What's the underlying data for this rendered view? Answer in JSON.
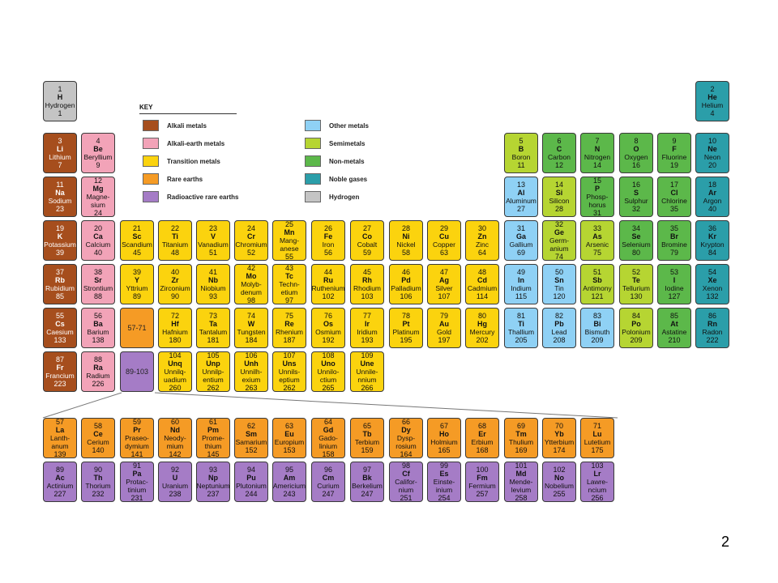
{
  "colors": {
    "alkali": "#a64e1d",
    "alkaline_earth": "#f2a3b8",
    "transition": "#fbd30e",
    "rare_earth": "#f59b25",
    "radioactive_rare_earth": "#a57cc6",
    "other_metal": "#8fd1f5",
    "semimetal": "#b6d532",
    "non_metal": "#5cb84a",
    "noble_gas": "#2b9ea9",
    "hydrogen": "#c4c4c4"
  },
  "key": {
    "title": "KEY",
    "items": [
      {
        "label": "Alkali metals",
        "color_key": "alkali"
      },
      {
        "label": "Alkali-earth metals",
        "color_key": "alkaline_earth"
      },
      {
        "label": "Transition metals",
        "color_key": "transition"
      },
      {
        "label": "Rare earths",
        "color_key": "rare_earth"
      },
      {
        "label": "Radioactive rare earths",
        "color_key": "radioactive_rare_earth"
      },
      {
        "label": "Other metals",
        "color_key": "other_metal"
      },
      {
        "label": "Semimetals",
        "color_key": "semimetal"
      },
      {
        "label": "Non-metals",
        "color_key": "non_metal"
      },
      {
        "label": "Noble gases",
        "color_key": "noble_gas"
      },
      {
        "label": "Hydrogen",
        "color_key": "hydrogen"
      }
    ]
  },
  "placeholders": [
    {
      "label": "57-71",
      "row": 5,
      "col": 3,
      "cat": "rare_earth"
    },
    {
      "label": "89-103",
      "row": 6,
      "col": 3,
      "cat": "radioactive_rare_earth"
    }
  ],
  "elements": [
    {
      "n": "1",
      "s": "H",
      "name": "Hydrogen",
      "m": "1",
      "row": 0,
      "col": 0,
      "cat": "hydrogen"
    },
    {
      "n": "2",
      "s": "He",
      "name": "Helium",
      "m": "4",
      "row": 0,
      "col": 17,
      "cat": "noble_gas"
    },
    {
      "n": "3",
      "s": "Li",
      "name": "Lithium",
      "m": "7",
      "row": 1,
      "col": 0,
      "cat": "alkali"
    },
    {
      "n": "4",
      "s": "Be",
      "name": "Beryllium",
      "m": "9",
      "row": 1,
      "col": 1,
      "cat": "alkaline_earth"
    },
    {
      "n": "5",
      "s": "B",
      "name": "Boron",
      "m": "11",
      "row": 1,
      "col": 12,
      "cat": "semimetal"
    },
    {
      "n": "6",
      "s": "C",
      "name": "Carbon",
      "m": "12",
      "row": 1,
      "col": 13,
      "cat": "non_metal"
    },
    {
      "n": "7",
      "s": "N",
      "name": "Nitrogen",
      "m": "14",
      "row": 1,
      "col": 14,
      "cat": "non_metal"
    },
    {
      "n": "8",
      "s": "O",
      "name": "Oxygen",
      "m": "16",
      "row": 1,
      "col": 15,
      "cat": "non_metal"
    },
    {
      "n": "9",
      "s": "F",
      "name": "Fluorine",
      "m": "19",
      "row": 1,
      "col": 16,
      "cat": "non_metal"
    },
    {
      "n": "10",
      "s": "Ne",
      "name": "Neon",
      "m": "20",
      "row": 1,
      "col": 17,
      "cat": "noble_gas"
    },
    {
      "n": "11",
      "s": "Na",
      "name": "Sodium",
      "m": "23",
      "row": 2,
      "col": 0,
      "cat": "alkali"
    },
    {
      "n": "12",
      "s": "Mg",
      "name": "Magne-\nsium",
      "m": "24",
      "row": 2,
      "col": 1,
      "cat": "alkaline_earth"
    },
    {
      "n": "13",
      "s": "Al",
      "name": "Aluminum",
      "m": "27",
      "row": 2,
      "col": 12,
      "cat": "other_metal"
    },
    {
      "n": "14",
      "s": "Si",
      "name": "Silicon",
      "m": "28",
      "row": 2,
      "col": 13,
      "cat": "semimetal"
    },
    {
      "n": "15",
      "s": "P",
      "name": "Phosp-\nhorus",
      "m": "31",
      "row": 2,
      "col": 14,
      "cat": "non_metal"
    },
    {
      "n": "16",
      "s": "S",
      "name": "Sulphur",
      "m": "32",
      "row": 2,
      "col": 15,
      "cat": "non_metal"
    },
    {
      "n": "17",
      "s": "Cl",
      "name": "Chlorine",
      "m": "35",
      "row": 2,
      "col": 16,
      "cat": "non_metal"
    },
    {
      "n": "18",
      "s": "Ar",
      "name": "Argon",
      "m": "40",
      "row": 2,
      "col": 17,
      "cat": "noble_gas"
    },
    {
      "n": "19",
      "s": "K",
      "name": "Potassium",
      "m": "39",
      "row": 3,
      "col": 0,
      "cat": "alkali"
    },
    {
      "n": "20",
      "s": "Ca",
      "name": "Calcium",
      "m": "40",
      "row": 3,
      "col": 1,
      "cat": "alkaline_earth"
    },
    {
      "n": "21",
      "s": "Sc",
      "name": "Scandium",
      "m": "45",
      "row": 3,
      "col": 2,
      "cat": "transition"
    },
    {
      "n": "22",
      "s": "Ti",
      "name": "Titanium",
      "m": "48",
      "row": 3,
      "col": 3,
      "cat": "transition"
    },
    {
      "n": "23",
      "s": "V",
      "name": "Vanadium",
      "m": "51",
      "row": 3,
      "col": 4,
      "cat": "transition"
    },
    {
      "n": "24",
      "s": "Cr",
      "name": "Chromium",
      "m": "52",
      "row": 3,
      "col": 5,
      "cat": "transition"
    },
    {
      "n": "25",
      "s": "Mn",
      "name": "Mang-\nanese",
      "m": "55",
      "row": 3,
      "col": 6,
      "cat": "transition"
    },
    {
      "n": "26",
      "s": "Fe",
      "name": "Iron",
      "m": "56",
      "row": 3,
      "col": 7,
      "cat": "transition"
    },
    {
      "n": "27",
      "s": "Co",
      "name": "Cobalt",
      "m": "59",
      "row": 3,
      "col": 8,
      "cat": "transition"
    },
    {
      "n": "28",
      "s": "Ni",
      "name": "Nickel",
      "m": "58",
      "row": 3,
      "col": 9,
      "cat": "transition"
    },
    {
      "n": "29",
      "s": "Cu",
      "name": "Copper",
      "m": "63",
      "row": 3,
      "col": 10,
      "cat": "transition"
    },
    {
      "n": "30",
      "s": "Zn",
      "name": "Zinc",
      "m": "64",
      "row": 3,
      "col": 11,
      "cat": "transition"
    },
    {
      "n": "31",
      "s": "Ga",
      "name": "Gallium",
      "m": "69",
      "row": 3,
      "col": 12,
      "cat": "other_metal"
    },
    {
      "n": "32",
      "s": "Ge",
      "name": "Germ-\nanium",
      "m": "74",
      "row": 3,
      "col": 13,
      "cat": "semimetal"
    },
    {
      "n": "33",
      "s": "As",
      "name": "Arsenic",
      "m": "75",
      "row": 3,
      "col": 14,
      "cat": "semimetal"
    },
    {
      "n": "34",
      "s": "Se",
      "name": "Selenium",
      "m": "80",
      "row": 3,
      "col": 15,
      "cat": "non_metal"
    },
    {
      "n": "35",
      "s": "Br",
      "name": "Bromine",
      "m": "79",
      "row": 3,
      "col": 16,
      "cat": "non_metal"
    },
    {
      "n": "36",
      "s": "Kr",
      "name": "Krypton",
      "m": "84",
      "row": 3,
      "col": 17,
      "cat": "noble_gas"
    },
    {
      "n": "37",
      "s": "Rb",
      "name": "Rubidium",
      "m": "85",
      "row": 4,
      "col": 0,
      "cat": "alkali"
    },
    {
      "n": "38",
      "s": "Sr",
      "name": "Strontium",
      "m": "88",
      "row": 4,
      "col": 1,
      "cat": "alkaline_earth"
    },
    {
      "n": "39",
      "s": "Y",
      "name": "Yttrium",
      "m": "89",
      "row": 4,
      "col": 2,
      "cat": "transition"
    },
    {
      "n": "40",
      "s": "Zr",
      "name": "Zirconium",
      "m": "90",
      "row": 4,
      "col": 3,
      "cat": "transition"
    },
    {
      "n": "41",
      "s": "Nb",
      "name": "Niobium",
      "m": "93",
      "row": 4,
      "col": 4,
      "cat": "transition"
    },
    {
      "n": "42",
      "s": "Mo",
      "name": "Molyb-\ndenum",
      "m": "98",
      "row": 4,
      "col": 5,
      "cat": "transition"
    },
    {
      "n": "43",
      "s": "Tc",
      "name": "Techn-\netium",
      "m": "97",
      "row": 4,
      "col": 6,
      "cat": "transition"
    },
    {
      "n": "44",
      "s": "Ru",
      "name": "Ruthenium",
      "m": "102",
      "row": 4,
      "col": 7,
      "cat": "transition"
    },
    {
      "n": "45",
      "s": "Rh",
      "name": "Rhodium",
      "m": "103",
      "row": 4,
      "col": 8,
      "cat": "transition"
    },
    {
      "n": "46",
      "s": "Pd",
      "name": "Palladium",
      "m": "106",
      "row": 4,
      "col": 9,
      "cat": "transition"
    },
    {
      "n": "47",
      "s": "Ag",
      "name": "Silver",
      "m": "107",
      "row": 4,
      "col": 10,
      "cat": "transition"
    },
    {
      "n": "48",
      "s": "Cd",
      "name": "Cadmium",
      "m": "114",
      "row": 4,
      "col": 11,
      "cat": "transition"
    },
    {
      "n": "49",
      "s": "In",
      "name": "Indium",
      "m": "115",
      "row": 4,
      "col": 12,
      "cat": "other_metal"
    },
    {
      "n": "50",
      "s": "Sn",
      "name": "Tin",
      "m": "120",
      "row": 4,
      "col": 13,
      "cat": "other_metal"
    },
    {
      "n": "51",
      "s": "Sb",
      "name": "Antimony",
      "m": "121",
      "row": 4,
      "col": 14,
      "cat": "semimetal"
    },
    {
      "n": "52",
      "s": "Te",
      "name": "Tellurium",
      "m": "130",
      "row": 4,
      "col": 15,
      "cat": "semimetal"
    },
    {
      "n": "53",
      "s": "I",
      "name": "Iodine",
      "m": "127",
      "row": 4,
      "col": 16,
      "cat": "non_metal"
    },
    {
      "n": "54",
      "s": "Xe",
      "name": "Xenon",
      "m": "132",
      "row": 4,
      "col": 17,
      "cat": "noble_gas"
    },
    {
      "n": "55",
      "s": "Cs",
      "name": "Caesium",
      "m": "133",
      "row": 5,
      "col": 0,
      "cat": "alkali"
    },
    {
      "n": "56",
      "s": "Ba",
      "name": "Barium",
      "m": "138",
      "row": 5,
      "col": 1,
      "cat": "alkaline_earth"
    },
    {
      "n": "72",
      "s": "Hf",
      "name": "Hafnium",
      "m": "180",
      "row": 5,
      "col": 3,
      "cat": "transition"
    },
    {
      "n": "73",
      "s": "Ta",
      "name": "Tantalum",
      "m": "181",
      "row": 5,
      "col": 4,
      "cat": "transition"
    },
    {
      "n": "74",
      "s": "W",
      "name": "Tungsten",
      "m": "184",
      "row": 5,
      "col": 5,
      "cat": "transition"
    },
    {
      "n": "75",
      "s": "Re",
      "name": "Rhenium",
      "m": "187",
      "row": 5,
      "col": 6,
      "cat": "transition"
    },
    {
      "n": "76",
      "s": "Os",
      "name": "Osmium",
      "m": "192",
      "row": 5,
      "col": 7,
      "cat": "transition"
    },
    {
      "n": "77",
      "s": "Ir",
      "name": "Iridium",
      "m": "193",
      "row": 5,
      "col": 8,
      "cat": "transition"
    },
    {
      "n": "78",
      "s": "Pt",
      "name": "Platinum",
      "m": "195",
      "row": 5,
      "col": 9,
      "cat": "transition"
    },
    {
      "n": "79",
      "s": "Au",
      "name": "Gold",
      "m": "197",
      "row": 5,
      "col": 10,
      "cat": "transition"
    },
    {
      "n": "80",
      "s": "Hg",
      "name": "Mercury",
      "m": "202",
      "row": 5,
      "col": 11,
      "cat": "transition"
    },
    {
      "n": "81",
      "s": "Ti",
      "name": "Thallium",
      "m": "205",
      "row": 5,
      "col": 12,
      "cat": "other_metal"
    },
    {
      "n": "82",
      "s": "Pb",
      "name": "Lead",
      "m": "208",
      "row": 5,
      "col": 13,
      "cat": "other_metal"
    },
    {
      "n": "83",
      "s": "Bi",
      "name": "Bismuth",
      "m": "209",
      "row": 5,
      "col": 14,
      "cat": "other_metal"
    },
    {
      "n": "84",
      "s": "Po",
      "name": "Polonium",
      "m": "209",
      "row": 5,
      "col": 15,
      "cat": "semimetal"
    },
    {
      "n": "85",
      "s": "At",
      "name": "Astatine",
      "m": "210",
      "row": 5,
      "col": 16,
      "cat": "non_metal"
    },
    {
      "n": "86",
      "s": "Rn",
      "name": "Radon",
      "m": "222",
      "row": 5,
      "col": 17,
      "cat": "noble_gas"
    },
    {
      "n": "87",
      "s": "Fr",
      "name": "Francium",
      "m": "223",
      "row": 6,
      "col": 0,
      "cat": "alkali"
    },
    {
      "n": "88",
      "s": "Ra",
      "name": "Radium",
      "m": "226",
      "row": 6,
      "col": 1,
      "cat": "alkaline_earth"
    },
    {
      "n": "104",
      "s": "Unq",
      "name": "Unnilq-\nuadium",
      "m": "260",
      "row": 6,
      "col": 3,
      "cat": "transition"
    },
    {
      "n": "105",
      "s": "Unp",
      "name": "Unnilp-\nentium",
      "m": "262",
      "row": 6,
      "col": 4,
      "cat": "transition"
    },
    {
      "n": "106",
      "s": "Unh",
      "name": "Unnilh-\nexium",
      "m": "263",
      "row": 6,
      "col": 5,
      "cat": "transition"
    },
    {
      "n": "107",
      "s": "Uns",
      "name": "Unnils-\neptium",
      "m": "262",
      "row": 6,
      "col": 6,
      "cat": "transition"
    },
    {
      "n": "108",
      "s": "Uno",
      "name": "Unnilo-\nctium",
      "m": "265",
      "row": 6,
      "col": 7,
      "cat": "transition"
    },
    {
      "n": "109",
      "s": "Une",
      "name": "Unnile-\nnnium",
      "m": "266",
      "row": 6,
      "col": 8,
      "cat": "transition"
    },
    {
      "n": "57",
      "s": "La",
      "name": "Lanth-\nanum",
      "m": "139",
      "row": 7,
      "col": 0,
      "cat": "rare_earth"
    },
    {
      "n": "58",
      "s": "Ce",
      "name": "Cerium",
      "m": "140",
      "row": 7,
      "col": 1,
      "cat": "rare_earth"
    },
    {
      "n": "59",
      "s": "Pr",
      "name": "Praseo-\ndymium",
      "m": "141",
      "row": 7,
      "col": 2,
      "cat": "rare_earth"
    },
    {
      "n": "60",
      "s": "Nd",
      "name": "Neody-\nmium",
      "m": "142",
      "row": 7,
      "col": 3,
      "cat": "rare_earth"
    },
    {
      "n": "61",
      "s": "Pm",
      "name": "Prome-\nthium",
      "m": "145",
      "row": 7,
      "col": 4,
      "cat": "rare_earth"
    },
    {
      "n": "62",
      "s": "Sm",
      "name": "Samarium",
      "m": "152",
      "row": 7,
      "col": 5,
      "cat": "rare_earth"
    },
    {
      "n": "63",
      "s": "Eu",
      "name": "Europium",
      "m": "153",
      "row": 7,
      "col": 6,
      "cat": "rare_earth"
    },
    {
      "n": "64",
      "s": "Gd",
      "name": "Gado-\nlinium",
      "m": "158",
      "row": 7,
      "col": 7,
      "cat": "rare_earth"
    },
    {
      "n": "65",
      "s": "Tb",
      "name": "Terbium",
      "m": "159",
      "row": 7,
      "col": 8,
      "cat": "rare_earth"
    },
    {
      "n": "66",
      "s": "Dy",
      "name": "Dysp-\nrosium",
      "m": "164",
      "row": 7,
      "col": 9,
      "cat": "rare_earth"
    },
    {
      "n": "67",
      "s": "Ho",
      "name": "Holmium",
      "m": "165",
      "row": 7,
      "col": 10,
      "cat": "rare_earth"
    },
    {
      "n": "68",
      "s": "Er",
      "name": "Erbium",
      "m": "168",
      "row": 7,
      "col": 11,
      "cat": "rare_earth"
    },
    {
      "n": "69",
      "s": "Tm",
      "name": "Thulium",
      "m": "169",
      "row": 7,
      "col": 12,
      "cat": "rare_earth"
    },
    {
      "n": "70",
      "s": "Yb",
      "name": "Ytterbium",
      "m": "174",
      "row": 7,
      "col": 13,
      "cat": "rare_earth"
    },
    {
      "n": "71",
      "s": "Lu",
      "name": "Lutetium",
      "m": "175",
      "row": 7,
      "col": 14,
      "cat": "rare_earth"
    },
    {
      "n": "89",
      "s": "Ac",
      "name": "Actinium",
      "m": "227",
      "row": 8,
      "col": 0,
      "cat": "radioactive_rare_earth"
    },
    {
      "n": "90",
      "s": "Th",
      "name": "Thorium",
      "m": "232",
      "row": 8,
      "col": 1,
      "cat": "radioactive_rare_earth"
    },
    {
      "n": "91",
      "s": "Pa",
      "name": "Protac-\ntinium",
      "m": "231",
      "row": 8,
      "col": 2,
      "cat": "radioactive_rare_earth"
    },
    {
      "n": "92",
      "s": "U",
      "name": "Uranium",
      "m": "238",
      "row": 8,
      "col": 3,
      "cat": "radioactive_rare_earth"
    },
    {
      "n": "93",
      "s": "Np",
      "name": "Neptunium",
      "m": "237",
      "row": 8,
      "col": 4,
      "cat": "radioactive_rare_earth"
    },
    {
      "n": "94",
      "s": "Pu",
      "name": "Plutonium",
      "m": "244",
      "row": 8,
      "col": 5,
      "cat": "radioactive_rare_earth"
    },
    {
      "n": "95",
      "s": "Am",
      "name": "Americium",
      "m": "243",
      "row": 8,
      "col": 6,
      "cat": "radioactive_rare_earth"
    },
    {
      "n": "96",
      "s": "Cm",
      "name": "Curium",
      "m": "247",
      "row": 8,
      "col": 7,
      "cat": "radioactive_rare_earth"
    },
    {
      "n": "97",
      "s": "Bk",
      "name": "Berkelium",
      "m": "247",
      "row": 8,
      "col": 8,
      "cat": "radioactive_rare_earth"
    },
    {
      "n": "98",
      "s": "Cf",
      "name": "Califor-\nnium",
      "m": "251",
      "row": 8,
      "col": 9,
      "cat": "radioactive_rare_earth"
    },
    {
      "n": "99",
      "s": "Es",
      "name": "Einste-\ninium",
      "m": "254",
      "row": 8,
      "col": 10,
      "cat": "radioactive_rare_earth"
    },
    {
      "n": "100",
      "s": "Fm",
      "name": "Fermium",
      "m": "257",
      "row": 8,
      "col": 11,
      "cat": "radioactive_rare_earth"
    },
    {
      "n": "101",
      "s": "Md",
      "name": "Mende-\nlevium",
      "m": "258",
      "row": 8,
      "col": 12,
      "cat": "radioactive_rare_earth"
    },
    {
      "n": "102",
      "s": "No",
      "name": "Nobelium",
      "m": "255",
      "row": 8,
      "col": 13,
      "cat": "radioactive_rare_earth"
    },
    {
      "n": "103",
      "s": "Lr",
      "name": "Lawre-\nncium",
      "m": "256",
      "row": 8,
      "col": 14,
      "cat": "radioactive_rare_earth"
    }
  ],
  "page_number": "2"
}
